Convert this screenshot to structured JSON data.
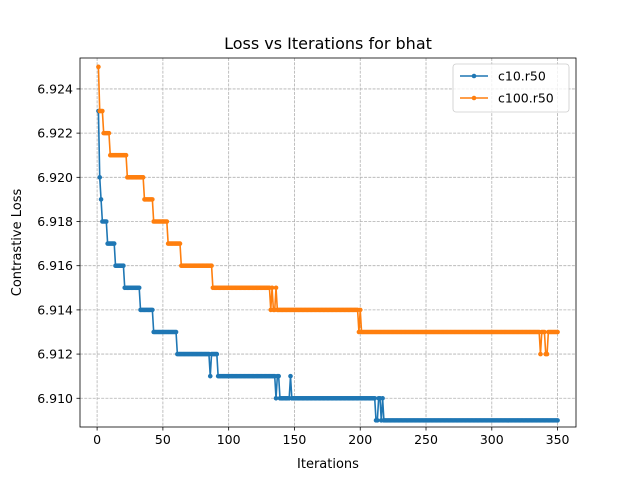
{
  "chart_data": {
    "type": "line",
    "title": "Loss vs Iterations for bhat",
    "xlabel": "Iterations",
    "ylabel": "Contrastive Loss",
    "xlim": [
      -13,
      364
    ],
    "ylim": [
      6.9087,
      6.9254
    ],
    "xticks": [
      0,
      50,
      100,
      150,
      200,
      250,
      300,
      350
    ],
    "yticks": [
      6.91,
      6.912,
      6.914,
      6.916,
      6.918,
      6.92,
      6.922,
      6.924
    ],
    "xtick_labels": [
      "0",
      "50",
      "100",
      "150",
      "200",
      "250",
      "300",
      "350"
    ],
    "ytick_labels": [
      "6.910",
      "6.912",
      "6.914",
      "6.916",
      "6.918",
      "6.920",
      "6.922",
      "6.924"
    ],
    "grid": true,
    "legend_position": "top-right",
    "series": [
      {
        "name": "c10.r50",
        "color": "#1f77b4",
        "step_points": [
          [
            1,
            6.923
          ],
          [
            2,
            6.92
          ],
          [
            3,
            6.919
          ],
          [
            4,
            6.918
          ],
          [
            8,
            6.917
          ],
          [
            14,
            6.916
          ],
          [
            21,
            6.915
          ],
          [
            33,
            6.914
          ],
          [
            43,
            6.913
          ],
          [
            61,
            6.912
          ],
          [
            86,
            6.911
          ],
          [
            87,
            6.912
          ],
          [
            92,
            6.911
          ],
          [
            136,
            6.91
          ],
          [
            137,
            6.911
          ],
          [
            139,
            6.91
          ],
          [
            147,
            6.911
          ],
          [
            148,
            6.91
          ],
          [
            212,
            6.909
          ],
          [
            214,
            6.91
          ],
          [
            216,
            6.909
          ],
          [
            217,
            6.91
          ],
          [
            218,
            6.909
          ],
          [
            350,
            6.909
          ]
        ]
      },
      {
        "name": "c100.r50",
        "color": "#ff7f0e",
        "step_points": [
          [
            1,
            6.925
          ],
          [
            2,
            6.923
          ],
          [
            5,
            6.922
          ],
          [
            10,
            6.921
          ],
          [
            23,
            6.92
          ],
          [
            36,
            6.919
          ],
          [
            43,
            6.918
          ],
          [
            54,
            6.917
          ],
          [
            64,
            6.916
          ],
          [
            88,
            6.915
          ],
          [
            132,
            6.914
          ],
          [
            133,
            6.915
          ],
          [
            134,
            6.914
          ],
          [
            136,
            6.915
          ],
          [
            137,
            6.914
          ],
          [
            199,
            6.913
          ],
          [
            200,
            6.914
          ],
          [
            201,
            6.913
          ],
          [
            337,
            6.912
          ],
          [
            338,
            6.913
          ],
          [
            341,
            6.912
          ],
          [
            343,
            6.913
          ],
          [
            350,
            6.913
          ]
        ]
      }
    ]
  }
}
